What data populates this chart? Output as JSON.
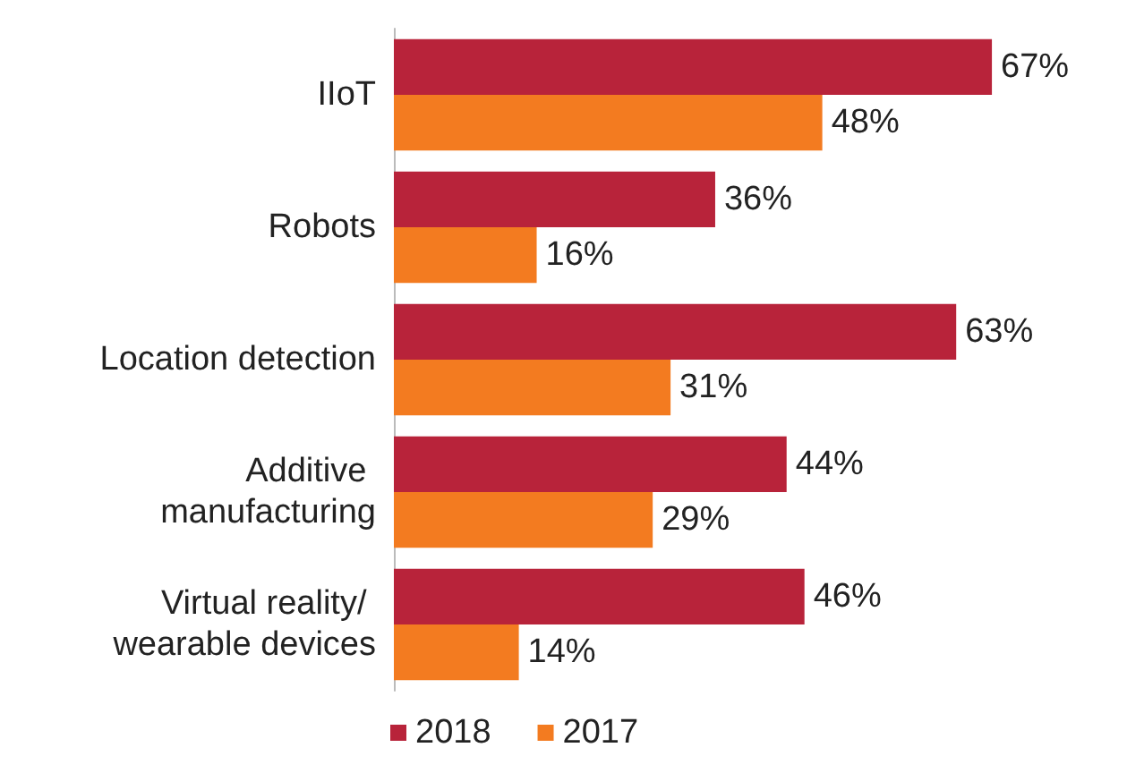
{
  "chart_data": {
    "type": "bar",
    "orientation": "horizontal",
    "categories": [
      "IIoT",
      "Robots",
      "Location detection",
      "Additive manufacturing",
      "Virtual reality/ wearable devices"
    ],
    "series": [
      {
        "name": "2018",
        "color": "#b8233a",
        "values": [
          67,
          36,
          63,
          44,
          46
        ],
        "value_labels": [
          "67%",
          "36%",
          "63%",
          "44%",
          "46%"
        ]
      },
      {
        "name": "2017",
        "color": "#f37b20",
        "values": [
          48,
          16,
          31,
          29,
          14
        ],
        "value_labels": [
          "48%",
          "16%",
          "31%",
          "29%",
          "14%"
        ]
      }
    ],
    "legend": "bottom"
  }
}
